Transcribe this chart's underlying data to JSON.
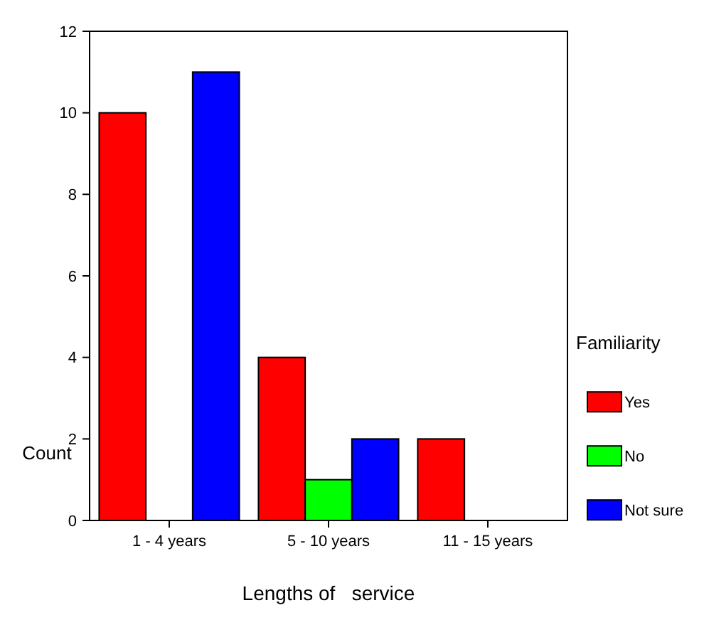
{
  "chart_data": {
    "type": "bar",
    "xlabel": "Lengths of   service",
    "ylabel": "Count",
    "legend_title": "Familiarity",
    "categories": [
      "1 - 4 years",
      "5 - 10 years",
      "11 - 15 years"
    ],
    "series": [
      {
        "name": "Yes",
        "color": "#ff0000",
        "values": [
          10,
          4,
          2
        ]
      },
      {
        "name": "No",
        "color": "#00ff00",
        "values": [
          null,
          1,
          null
        ]
      },
      {
        "name": "Not sure",
        "color": "#0000ff",
        "values": [
          11,
          2,
          null
        ]
      }
    ],
    "ylim": [
      0,
      12
    ],
    "yticks": [
      0,
      2,
      4,
      6,
      8,
      10,
      12
    ],
    "grid": false,
    "legend": "right"
  }
}
